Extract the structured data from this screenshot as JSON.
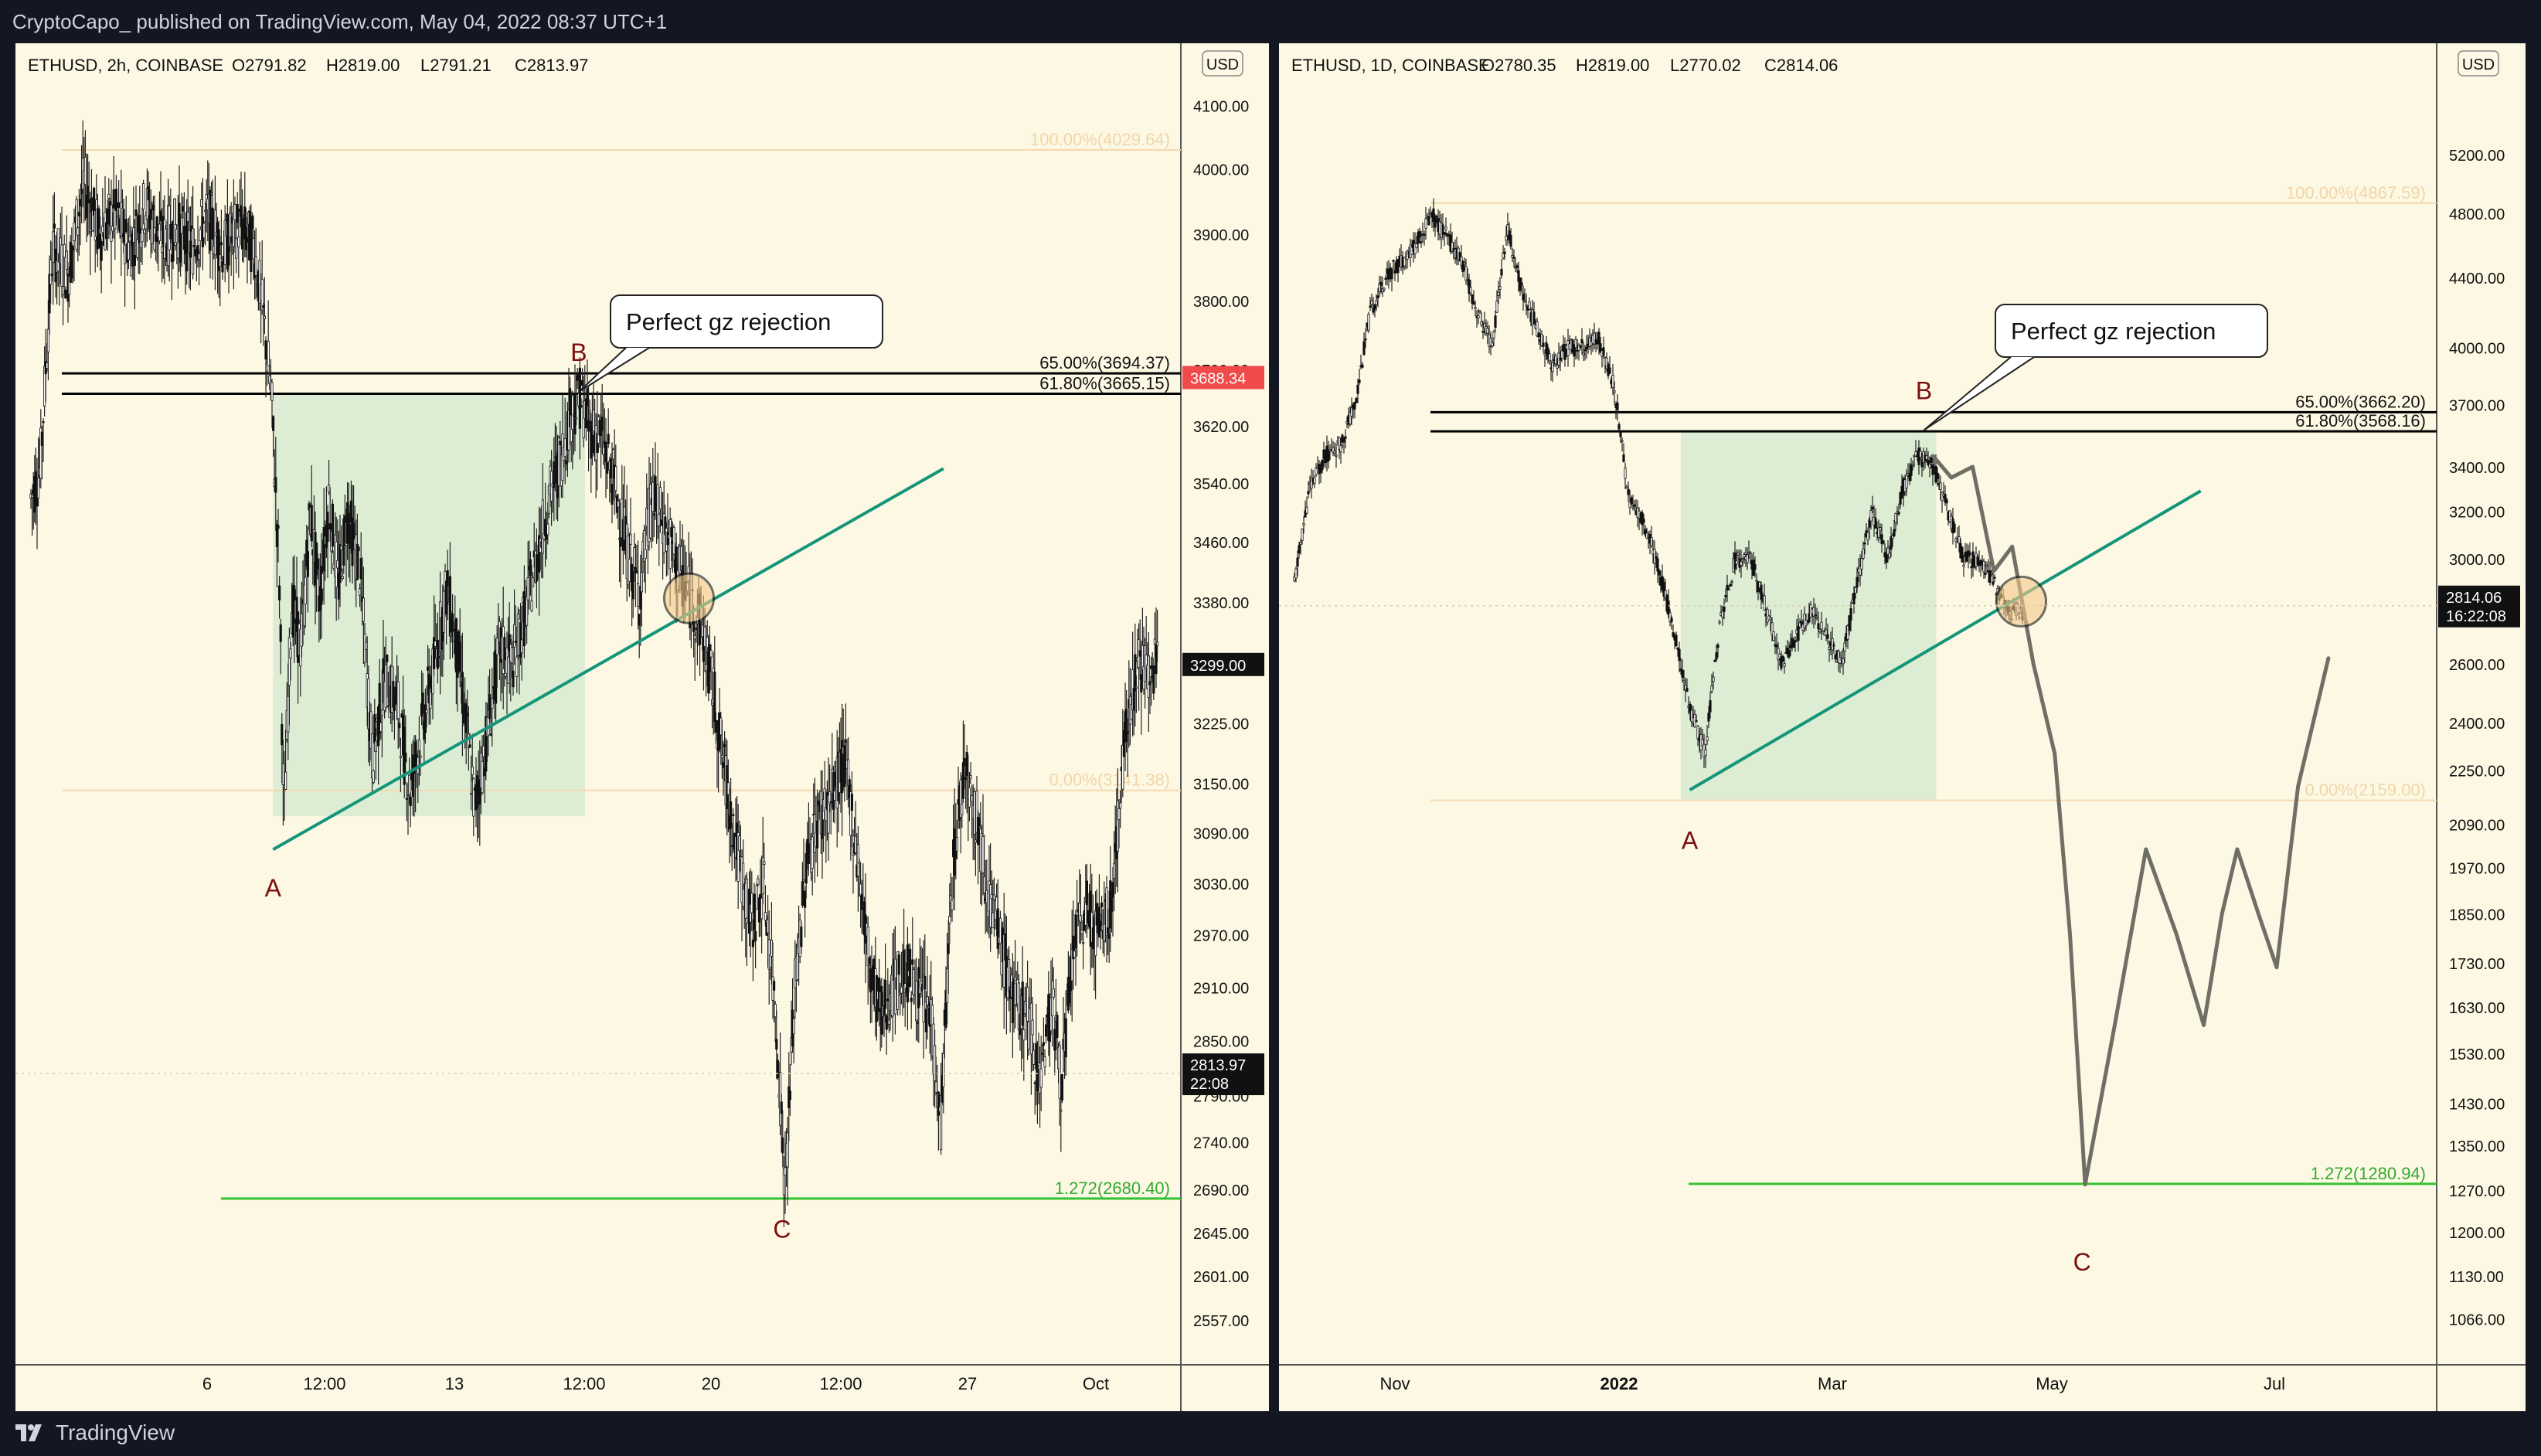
{
  "publish_line": "CryptoCapo_ published on TradingView.com, May 04, 2022 08:37 UTC+1",
  "brand": "TradingView",
  "chart_data": [
    {
      "type": "candlestick",
      "title": "ETHUSD, 2h, COINBASE",
      "ohlc_label": {
        "open": "O2791.82",
        "high": "H2819.00",
        "low": "L2791.21",
        "close": "C2813.97"
      },
      "currency": "USD",
      "y_scale": "log",
      "ylim": [
        2540,
        4170
      ],
      "y_ticks": [
        "4100.00",
        "4000.00",
        "3900.00",
        "3800.00",
        "3700.00",
        "3620.00",
        "3540.00",
        "3460.00",
        "3380.00",
        "3299.00",
        "3225.00",
        "3150.00",
        "3090.00",
        "3030.00",
        "2970.00",
        "2910.00",
        "2850.00",
        "2790.00",
        "2740.00",
        "2690.00",
        "2645.00",
        "2601.00",
        "2557.00"
      ],
      "x_ticks": [
        "6",
        "12:00",
        "13",
        "12:00",
        "20",
        "12:00",
        "27",
        "Oct"
      ],
      "price_series": [
        [
          0,
          3520
        ],
        [
          6,
          3560
        ],
        [
          14,
          3880
        ],
        [
          24,
          3840
        ],
        [
          34,
          3980
        ],
        [
          44,
          3900
        ],
        [
          54,
          3930
        ],
        [
          64,
          3880
        ],
        [
          74,
          3945
        ],
        [
          84,
          3890
        ],
        [
          94,
          3910
        ],
        [
          104,
          3880
        ],
        [
          114,
          3930
        ],
        [
          124,
          3875
        ],
        [
          134,
          3915
        ],
        [
          144,
          3880
        ],
        [
          150,
          3770
        ],
        [
          155,
          3660
        ],
        [
          160,
          3420
        ],
        [
          163,
          3100
        ],
        [
          168,
          3380
        ],
        [
          174,
          3320
        ],
        [
          180,
          3500
        ],
        [
          186,
          3380
        ],
        [
          192,
          3520
        ],
        [
          198,
          3400
        ],
        [
          204,
          3500
        ],
        [
          212,
          3420
        ],
        [
          220,
          3180
        ],
        [
          228,
          3280
        ],
        [
          236,
          3250
        ],
        [
          244,
          3140
        ],
        [
          252,
          3220
        ],
        [
          260,
          3300
        ],
        [
          268,
          3400
        ],
        [
          276,
          3300
        ],
        [
          286,
          3120
        ],
        [
          294,
          3210
        ],
        [
          302,
          3320
        ],
        [
          310,
          3300
        ],
        [
          318,
          3360
        ],
        [
          326,
          3440
        ],
        [
          334,
          3520
        ],
        [
          342,
          3580
        ],
        [
          348,
          3640
        ],
        [
          354,
          3660
        ],
        [
          360,
          3620
        ],
        [
          368,
          3600
        ],
        [
          376,
          3540
        ],
        [
          384,
          3450
        ],
        [
          392,
          3390
        ],
        [
          400,
          3520
        ],
        [
          408,
          3480
        ],
        [
          416,
          3430
        ],
        [
          424,
          3390
        ],
        [
          432,
          3350
        ],
        [
          440,
          3260
        ],
        [
          448,
          3150
        ],
        [
          456,
          3060
        ],
        [
          464,
          2980
        ],
        [
          472,
          3030
        ],
        [
          480,
          2880
        ],
        [
          486,
          2690
        ],
        [
          492,
          2900
        ],
        [
          500,
          3060
        ],
        [
          508,
          3110
        ],
        [
          516,
          3130
        ],
        [
          524,
          3180
        ],
        [
          532,
          3070
        ],
        [
          540,
          2940
        ],
        [
          548,
          2880
        ],
        [
          556,
          2910
        ],
        [
          564,
          2930
        ],
        [
          572,
          2900
        ],
        [
          580,
          2880
        ],
        [
          586,
          2750
        ],
        [
          594,
          3050
        ],
        [
          602,
          3180
        ],
        [
          610,
          3100
        ],
        [
          618,
          3010
        ],
        [
          626,
          2950
        ],
        [
          634,
          2890
        ],
        [
          642,
          2880
        ],
        [
          650,
          2810
        ],
        [
          658,
          2900
        ],
        [
          664,
          2800
        ],
        [
          672,
          2960
        ],
        [
          680,
          3000
        ],
        [
          688,
          2970
        ],
        [
          696,
          3000
        ],
        [
          702,
          3140
        ],
        [
          708,
          3260
        ],
        [
          714,
          3300
        ],
        [
          720,
          3290
        ],
        [
          727,
          3299
        ]
      ],
      "last_price": "2813.97",
      "countdown": "22:08",
      "highlight_price": "3688.34",
      "highlight_price_2": "3299.00",
      "fib_levels": [
        {
          "label": "100.00%(4029.64)",
          "price": 4029.64
        },
        {
          "label": "65.00%(3694.37)",
          "price": 3694.37
        },
        {
          "label": "61.80%(3665.15)",
          "price": 3665.15
        },
        {
          "label": "0.00%(3141.38)",
          "price": 3141.38
        },
        {
          "label": "1.272(2680.40)",
          "price": 2680.4
        }
      ],
      "wave_labels": [
        {
          "text": "A",
          "x": 156,
          "price": 3060
        },
        {
          "text": "B",
          "x": 353,
          "price": 3690
        },
        {
          "text": "C",
          "x": 484,
          "price": 2680
        }
      ],
      "annotation": "Perfect gz rejection",
      "trendline": {
        "from": [
          156,
          3070
        ],
        "to": [
          588,
          3560
        ]
      },
      "zone": {
        "x_from": 156,
        "x_to": 357,
        "price_from": 3110,
        "price_to": 3665
      }
    },
    {
      "type": "candlestick",
      "title": "ETHUSD, 1D, COINBASE",
      "ohlc_label": {
        "open": "O2780.35",
        "high": "H2819.00",
        "low": "L2770.02",
        "close": "C2814.06"
      },
      "currency": "USD",
      "y_scale": "log",
      "ylim": [
        1040,
        5900
      ],
      "y_ticks": [
        "5200.00",
        "4800.00",
        "4400.00",
        "4000.00",
        "3700.00",
        "3400.00",
        "3200.00",
        "3000.00",
        "2800.00",
        "2600.00",
        "2400.00",
        "2250.00",
        "2090.00",
        "1970.00",
        "1850.00",
        "1730.00",
        "1630.00",
        "1530.00",
        "1430.00",
        "1350.00",
        "1270.00",
        "1200.00",
        "1130.00",
        "1066.00"
      ],
      "x_ticks": [
        "Nov",
        "2022",
        "Mar",
        "May",
        "Jul"
      ],
      "price_series": [
        [
          790,
          2900
        ],
        [
          800,
          3300
        ],
        [
          810,
          3450
        ],
        [
          820,
          3500
        ],
        [
          830,
          3700
        ],
        [
          840,
          4200
        ],
        [
          850,
          4400
        ],
        [
          860,
          4500
        ],
        [
          870,
          4600
        ],
        [
          880,
          4800
        ],
        [
          890,
          4650
        ],
        [
          900,
          4500
        ],
        [
          910,
          4200
        ],
        [
          920,
          4000
        ],
        [
          930,
          4700
        ],
        [
          940,
          4300
        ],
        [
          950,
          4100
        ],
        [
          960,
          3900
        ],
        [
          970,
          4000
        ],
        [
          980,
          4000
        ],
        [
          990,
          4050
        ],
        [
          1000,
          3800
        ],
        [
          1010,
          3250
        ],
        [
          1020,
          3150
        ],
        [
          1030,
          2950
        ],
        [
          1040,
          2700
        ],
        [
          1050,
          2450
        ],
        [
          1060,
          2300
        ],
        [
          1070,
          2750
        ],
        [
          1080,
          3000
        ],
        [
          1090,
          3000
        ],
        [
          1100,
          2800
        ],
        [
          1110,
          2600
        ],
        [
          1120,
          2700
        ],
        [
          1130,
          2800
        ],
        [
          1140,
          2700
        ],
        [
          1150,
          2600
        ],
        [
          1160,
          2900
        ],
        [
          1170,
          3200
        ],
        [
          1180,
          3000
        ],
        [
          1190,
          3300
        ],
        [
          1200,
          3450
        ],
        [
          1210,
          3400
        ],
        [
          1220,
          3200
        ],
        [
          1230,
          3000
        ],
        [
          1240,
          3000
        ],
        [
          1250,
          2900
        ],
        [
          1260,
          2800
        ],
        [
          1270,
          2780
        ]
      ],
      "projection": [
        [
          1210,
          3450
        ],
        [
          1222,
          3350
        ],
        [
          1236,
          3400
        ],
        [
          1250,
          2950
        ],
        [
          1262,
          3050
        ],
        [
          1276,
          2600
        ],
        [
          1290,
          2300
        ],
        [
          1300,
          1800
        ],
        [
          1310,
          1280
        ],
        [
          1330,
          1600
        ],
        [
          1350,
          2020
        ],
        [
          1370,
          1800
        ],
        [
          1388,
          1590
        ],
        [
          1400,
          1850
        ],
        [
          1410,
          2020
        ],
        [
          1424,
          1850
        ],
        [
          1436,
          1720
        ],
        [
          1450,
          2200
        ],
        [
          1470,
          2620
        ]
      ],
      "last_price": "2814.06",
      "countdown": "16:22:08",
      "fib_levels": [
        {
          "label": "100.00%(4867.59)",
          "price": 4867.59
        },
        {
          "label": "65.00%(3662.20)",
          "price": 3662.2
        },
        {
          "label": "61.80%(3568.16)",
          "price": 3568.16
        },
        {
          "label": "0.00%(2159.00)",
          "price": 2159.0
        },
        {
          "label": "1.272(1280.94)",
          "price": 1280.94
        }
      ],
      "wave_labels": [
        {
          "text": "A",
          "x": 1050,
          "price": 2130
        },
        {
          "text": "B",
          "x": 1204,
          "price": 3650
        },
        {
          "text": "C",
          "x": 1308,
          "price": 1200
        }
      ],
      "annotation": "Perfect gz rejection",
      "trendline": {
        "from": [
          1050,
          2190
        ],
        "to": [
          1386,
          3290
        ]
      },
      "zone": {
        "x_from": 1044,
        "x_to": 1212,
        "price_from": 2159,
        "price_to": 3568
      }
    }
  ]
}
